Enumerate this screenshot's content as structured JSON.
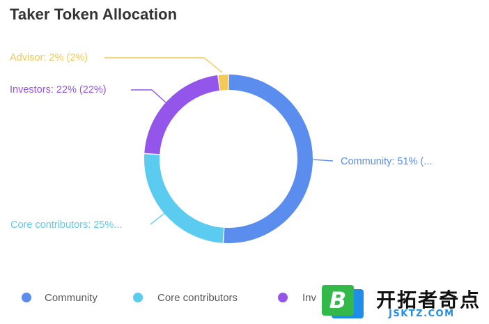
{
  "chart_data": {
    "type": "pie",
    "title": "Taker Token Allocation",
    "series": [
      {
        "name": "Community",
        "value": 51,
        "label": "Community: 51% (...",
        "color": "#5b8def"
      },
      {
        "name": "Core contributors",
        "value": 25,
        "label": "Core contributors: 25%...",
        "color": "#5ccbf0"
      },
      {
        "name": "Investors",
        "value": 22,
        "label": "Investors: 22% (22%)",
        "color": "#9455eb"
      },
      {
        "name": "Advisor",
        "value": 2,
        "label": "Advisor: 2% (2%)",
        "color": "#f4c955"
      }
    ],
    "legend": {
      "placement": "bottom",
      "items": [
        "Community",
        "Core contributors",
        "Inv"
      ]
    }
  },
  "watermark": {
    "text_cn": "开拓者奇点",
    "url": "JSKTZ.COM",
    "logo_letter": "B"
  }
}
